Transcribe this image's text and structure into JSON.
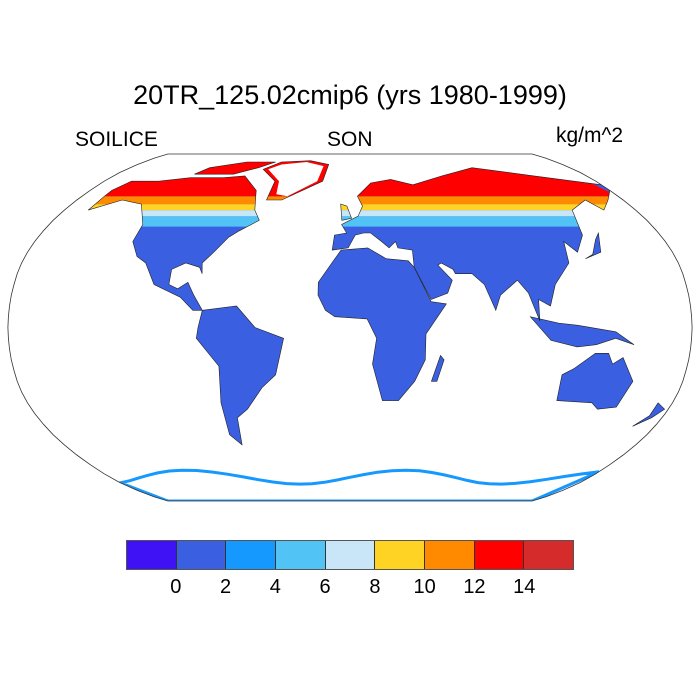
{
  "title": "20TR_125.02cmip6 (yrs 1980-1999)",
  "left_label": "SOILICE",
  "center_label": "SON",
  "right_label": "kg/m^2",
  "map": {
    "projection": "Robinson",
    "land_color": "#3a5fe0",
    "ocean_color": "#ffffff"
  },
  "colorbar": {
    "colors": [
      "#3f12f5",
      "#3a5fe0",
      "#1699ff",
      "#52c3f5",
      "#c8e6f7",
      "#ffd324",
      "#ff8a00",
      "#ff0000",
      "#d62b2b"
    ],
    "labels": [
      "0",
      "2",
      "4",
      "6",
      "8",
      "10",
      "12",
      "14"
    ]
  }
}
